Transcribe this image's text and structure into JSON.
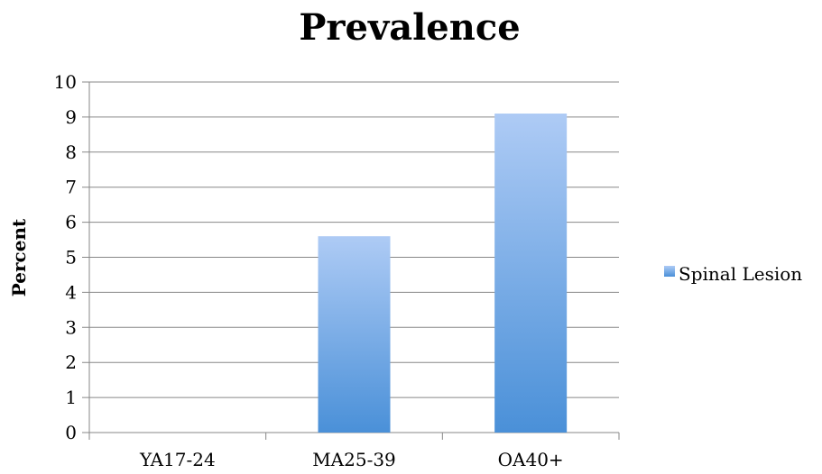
{
  "chart_data": {
    "type": "bar",
    "title": "Prevalence",
    "xlabel": "",
    "ylabel": "Percent",
    "categories": [
      "YA17-24",
      "MA25-39",
      "OA40+"
    ],
    "series": [
      {
        "name": "Spinal Lesion",
        "values": [
          0,
          5.6,
          9.1
        ],
        "color_top": "#aecbf5",
        "color_bottom": "#4a90d8"
      }
    ],
    "ylim": [
      0,
      10
    ],
    "yticks": [
      "0",
      "1",
      "2",
      "3",
      "4",
      "5",
      "6",
      "7",
      "8",
      "9",
      "10"
    ],
    "grid": true,
    "legend_position": "right"
  }
}
